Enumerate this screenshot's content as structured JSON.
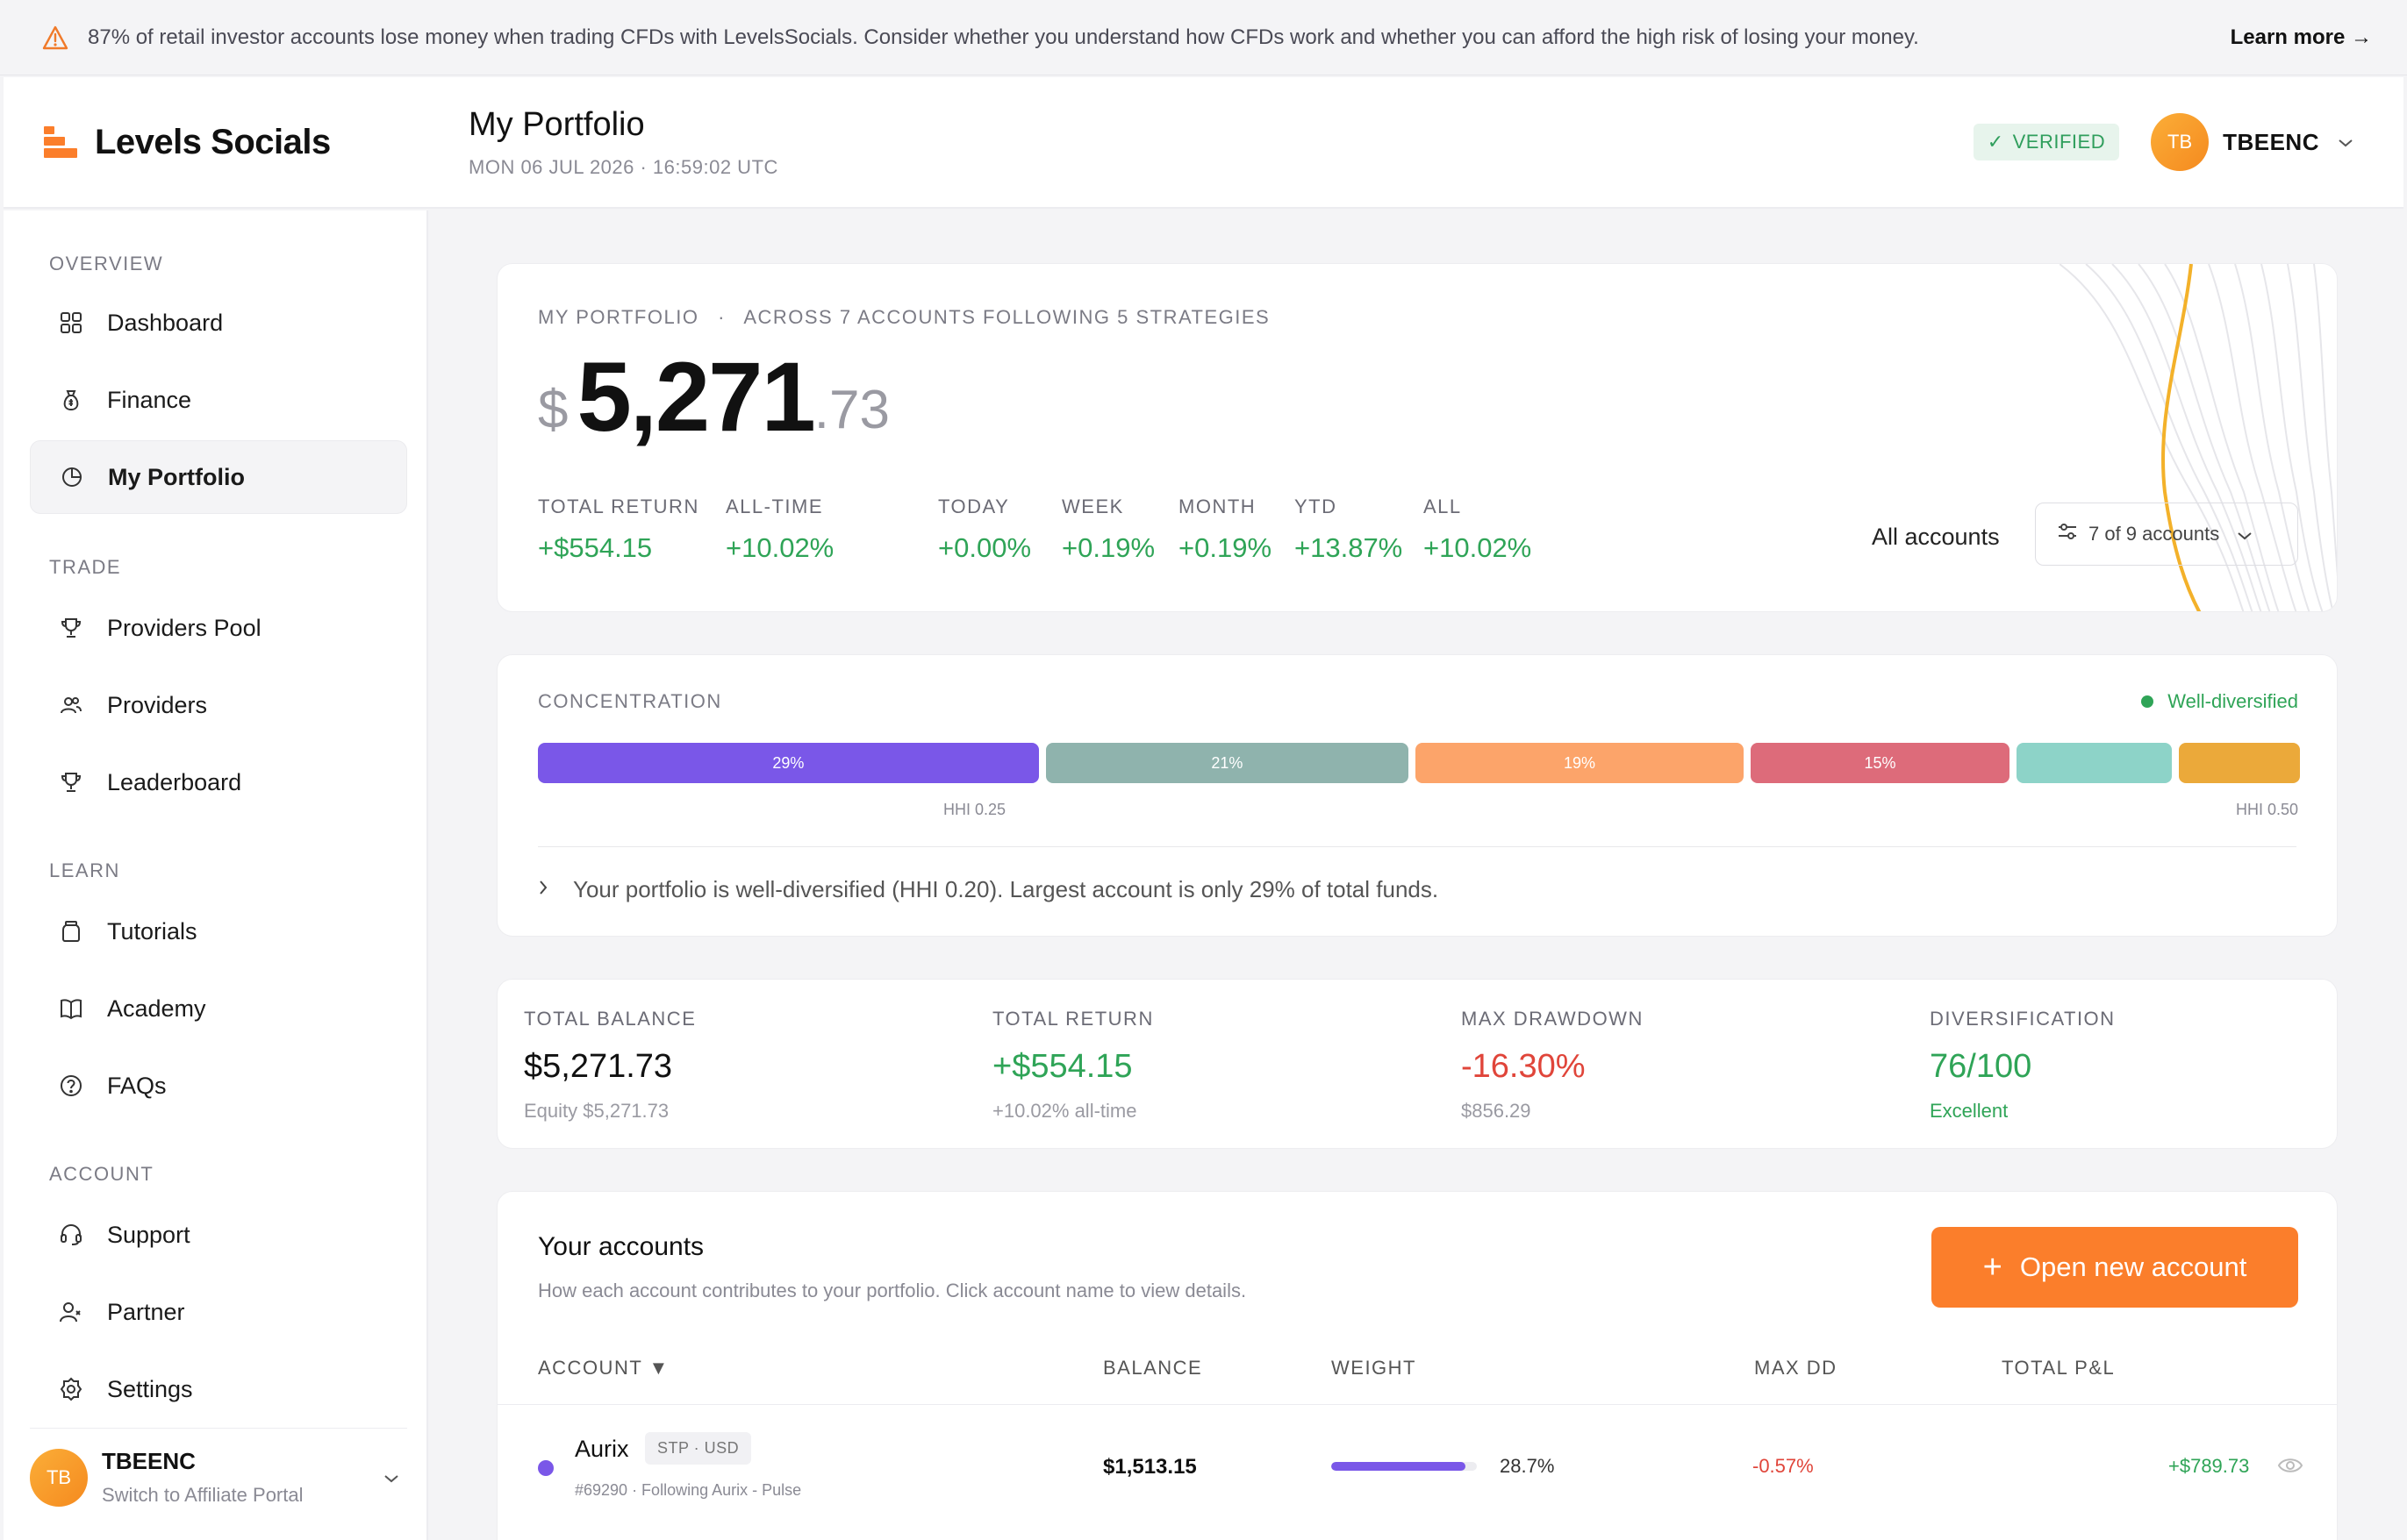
{
  "banner": {
    "text": "87% of retail investor accounts lose money when trading CFDs with LevelsSocials. Consider whether you understand how CFDs work and whether you can afford the high risk of losing your money.",
    "learn_more": "Learn more →"
  },
  "brand": {
    "name": "Levels Socials",
    "accent": "#fb7e2b"
  },
  "header": {
    "title": "My Portfolio",
    "datetime": "MON 06 JUL 2026 · 16:59:02 UTC",
    "verified": "VERIFIED",
    "user_initials": "TB",
    "username": "TBEENC"
  },
  "sidebar": {
    "sections": [
      "OVERVIEW",
      "TRADE",
      "LEARN",
      "ACCOUNT"
    ],
    "items": [
      {
        "label": "Dashboard",
        "icon": "grid-icon"
      },
      {
        "label": "Finance",
        "icon": "money-bag-icon"
      },
      {
        "label": "My Portfolio",
        "icon": "pie-chart-icon",
        "active": true
      },
      {
        "label": "Providers Pool",
        "icon": "trophy-icon"
      },
      {
        "label": "Providers",
        "icon": "users-icon"
      },
      {
        "label": "Leaderboard",
        "icon": "trophy-icon"
      },
      {
        "label": "Tutorials",
        "icon": "jar-icon"
      },
      {
        "label": "Academy",
        "icon": "book-icon"
      },
      {
        "label": "FAQs",
        "icon": "question-icon"
      },
      {
        "label": "Support",
        "icon": "headset-icon"
      },
      {
        "label": "Partner",
        "icon": "partner-icon"
      },
      {
        "label": "Settings",
        "icon": "gear-icon"
      }
    ],
    "footer": {
      "initials": "TB",
      "name": "TBEENC",
      "sub": "Switch to Affiliate Portal"
    }
  },
  "portfolio": {
    "eyebrow": "MY PORTFOLIO",
    "sep": "·",
    "across": "ACROSS 7 ACCOUNTS FOLLOWING 5 STRATEGIES",
    "currency": "$",
    "integer": "5,271",
    "decimal": ".73",
    "stats": [
      {
        "k": "TOTAL RETURN",
        "v": "+$554.15"
      },
      {
        "k": "ALL-TIME",
        "v": "+10.02%"
      },
      {
        "k": "TODAY",
        "v": "+0.00%"
      },
      {
        "k": "WEEK",
        "v": "+0.19%"
      },
      {
        "k": "MONTH",
        "v": "+0.19%"
      },
      {
        "k": "YTD",
        "v": "+13.87%"
      },
      {
        "k": "ALL",
        "v": "+10.02%"
      }
    ],
    "filter_label": "All accounts",
    "filter_value": "7 of 9 accounts"
  },
  "concentration": {
    "title": "CONCENTRATION",
    "status": "Well-diversified",
    "segments": [
      {
        "label": "29%",
        "pct": 29,
        "color": "#7a57e8"
      },
      {
        "label": "21%",
        "pct": 21,
        "color": "#8fb3ad"
      },
      {
        "label": "19%",
        "pct": 19,
        "color": "#fca46a"
      },
      {
        "label": "15%",
        "pct": 15,
        "color": "#dd6b7a"
      },
      {
        "label": "",
        "pct": 9,
        "color": "#8dd3c8"
      },
      {
        "label": "",
        "pct": 7,
        "color": "#eba93a"
      }
    ],
    "hhi_mid": "HHI 0.25",
    "hhi_end": "HHI 0.50",
    "note": "Your portfolio is well-diversified (HHI 0.20). Largest account is only 29% of total funds."
  },
  "kpis": [
    {
      "k": "TOTAL BALANCE",
      "v": "$5,271.73",
      "s": "Equity $5,271.73",
      "color": "#111111",
      "scolor": "#9a9aa2"
    },
    {
      "k": "TOTAL RETURN",
      "v": "+$554.15",
      "s": "+10.02% all-time",
      "color": "#2fa457",
      "scolor": "#9a9aa2"
    },
    {
      "k": "MAX DRAWDOWN",
      "v": "-16.30%",
      "s": "$856.29",
      "color": "#e0453a",
      "scolor": "#9a9aa2"
    },
    {
      "k": "DIVERSIFICATION",
      "v": "76/100",
      "s": "Excellent",
      "color": "#2fa457",
      "scolor": "#2fa457"
    }
  ],
  "accounts": {
    "title": "Your accounts",
    "subtitle": "How each account contributes to your portfolio. Click account name to view details.",
    "open_button": "Open new account",
    "columns": [
      "ACCOUNT ▼",
      "BALANCE",
      "WEIGHT",
      "MAX DD",
      "TOTAL P&L"
    ],
    "rows": [
      {
        "name": "Aurix",
        "tag": "STP · USD",
        "sub": "#69290 · Following Aurix - Pulse",
        "balance": "$1,513.15",
        "weight_pct": 28.7,
        "weight": "28.7%",
        "max_dd": "-0.57%",
        "pnl": "+$789.73",
        "color": "#7a57e8"
      }
    ]
  }
}
